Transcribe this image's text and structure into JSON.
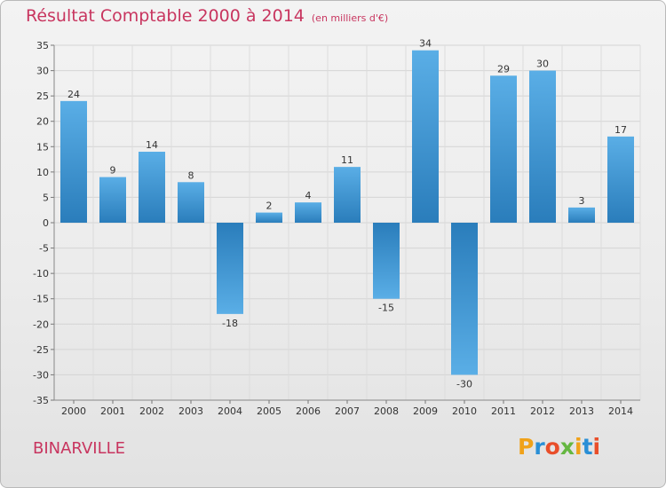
{
  "title": "Résultat Comptable 2000 à 2014",
  "subtitle": "(en milliers d'€)",
  "commune": "BINARVILLE",
  "logo": {
    "letters": [
      "P",
      "r",
      "o",
      "x",
      "i",
      "t",
      "i"
    ],
    "colors": [
      "#f0a21a",
      "#2a8fd6",
      "#e94e2a",
      "#65b741",
      "#f0a21a",
      "#2a8fd6",
      "#e94e2a"
    ]
  },
  "colors": {
    "accent": "#c8355f",
    "bar_light": "#5aaee6",
    "bar_dark": "#2a7dbb"
  },
  "chart_data": {
    "type": "bar",
    "categories": [
      "2000",
      "2001",
      "2002",
      "2003",
      "2004",
      "2005",
      "2006",
      "2007",
      "2008",
      "2009",
      "2010",
      "2011",
      "2012",
      "2013",
      "2014"
    ],
    "values": [
      24,
      9,
      14,
      8,
      -18,
      2,
      4,
      11,
      -15,
      34,
      -30,
      29,
      30,
      3,
      17
    ],
    "labels": [
      "24",
      "9",
      "14",
      "8",
      "-18",
      "2",
      "4",
      "11",
      "-15",
      "34",
      "-30",
      "29",
      "30",
      "3",
      "17"
    ],
    "ylim": [
      -35,
      35
    ],
    "yticks": [
      35,
      30,
      25,
      20,
      15,
      10,
      5,
      0,
      -5,
      -10,
      -15,
      -20,
      -25,
      -30,
      -35
    ],
    "grid": true,
    "legend": "none"
  }
}
